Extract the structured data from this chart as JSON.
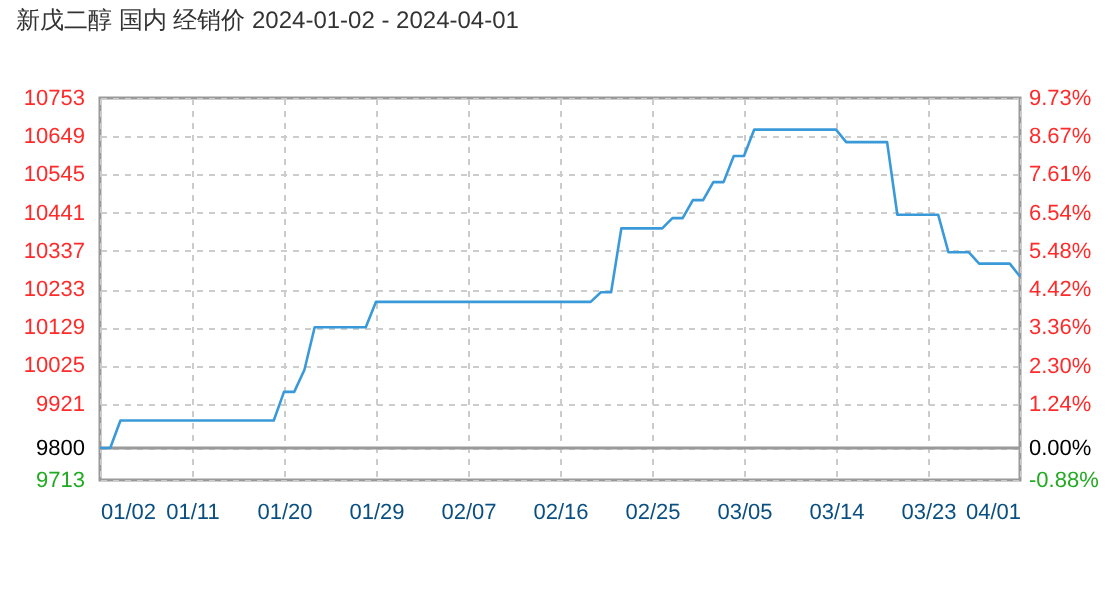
{
  "chart_data": {
    "type": "line",
    "title": "新戊二醇 国内 经销价 2024-01-02 - 2024-04-01",
    "x": [
      "2024-01-02",
      "2024-01-03",
      "2024-01-04",
      "2024-01-19",
      "2024-01-20",
      "2024-01-21",
      "2024-01-22",
      "2024-01-23",
      "2024-01-28",
      "2024-01-29",
      "2024-02-19",
      "2024-02-20",
      "2024-02-21",
      "2024-02-22",
      "2024-02-26",
      "2024-02-27",
      "2024-02-28",
      "2024-02-29",
      "2024-03-01",
      "2024-03-02",
      "2024-03-03",
      "2024-03-04",
      "2024-03-05",
      "2024-03-06",
      "2024-03-14",
      "2024-03-15",
      "2024-03-19",
      "2024-03-20",
      "2024-03-24",
      "2024-03-25",
      "2024-03-27",
      "2024-03-28",
      "2024-03-31",
      "2024-04-01"
    ],
    "series": [
      {
        "color": "#3a9ad9",
        "values": [
          9800,
          9800,
          9875,
          9875,
          9953,
          9953,
          10013,
          10129,
          10129,
          10198,
          10198,
          10224,
          10224,
          10398,
          10398,
          10426,
          10426,
          10475,
          10475,
          10524,
          10524,
          10595,
          10595,
          10667,
          10667,
          10633,
          10633,
          10435,
          10435,
          10333,
          10333,
          10302,
          10302,
          10267
        ]
      }
    ],
    "xlim": [
      "2024-01-02",
      "2024-04-01"
    ],
    "xticks": [
      {
        "value": "2024-01-02",
        "label": "01/02"
      },
      {
        "value": "2024-01-11",
        "label": "01/11"
      },
      {
        "value": "2024-01-20",
        "label": "01/20"
      },
      {
        "value": "2024-01-29",
        "label": "01/29"
      },
      {
        "value": "2024-02-07",
        "label": "02/07"
      },
      {
        "value": "2024-02-16",
        "label": "02/16"
      },
      {
        "value": "2024-02-25",
        "label": "02/25"
      },
      {
        "value": "2024-03-05",
        "label": "03/05"
      },
      {
        "value": "2024-03-14",
        "label": "03/14"
      },
      {
        "value": "2024-03-23",
        "label": "03/23"
      },
      {
        "value": "2024-04-01",
        "label": "04/01"
      }
    ],
    "ylim": [
      9713,
      10753
    ],
    "yticks": [
      9713,
      9800,
      9921,
      10025,
      10129,
      10233,
      10337,
      10441,
      10545,
      10649,
      10753
    ],
    "y2lim": [
      -0.88,
      9.73
    ],
    "y2ticks": [
      {
        "value": -0.88,
        "label": "-0.88%"
      },
      {
        "value": 0,
        "label": "0.00%"
      },
      {
        "value": 1.24,
        "label": "1.24%"
      },
      {
        "value": 2.3,
        "label": "2.30%"
      },
      {
        "value": 3.36,
        "label": "3.36%"
      },
      {
        "value": 4.42,
        "label": "4.42%"
      },
      {
        "value": 5.48,
        "label": "5.48%"
      },
      {
        "value": 6.54,
        "label": "6.54%"
      },
      {
        "value": 7.61,
        "label": "7.61%"
      },
      {
        "value": 8.67,
        "label": "8.67%"
      },
      {
        "value": 9.73,
        "label": "9.73%"
      }
    ],
    "ref_lines": [
      {
        "axis": "y",
        "value": 9800,
        "color": "#999999"
      }
    ],
    "grid": true,
    "marker": "none",
    "line_style": "solid"
  }
}
